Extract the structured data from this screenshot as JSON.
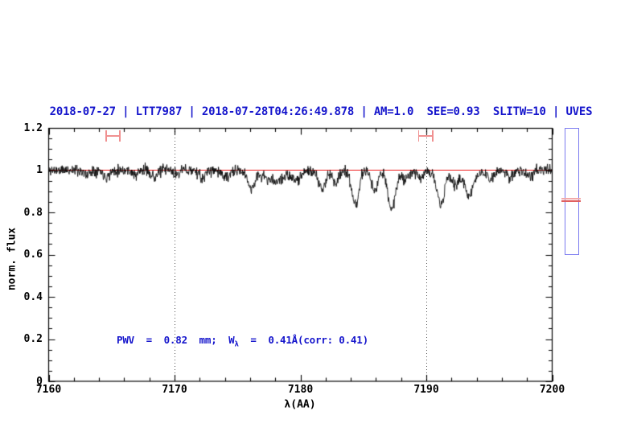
{
  "title": "2018-07-27 | LTT7987 | 2018-07-28T04:26:49.878 | AM=1.0  SEE=0.93  SLITW=10 | UVES",
  "annotation": {
    "prefix": "PWV  =  0.82  mm;  W",
    "sub": "λ",
    "suffix": "  =  0.41Å(corr: 0.41)"
  },
  "colors": {
    "title_blue": "#1515cc",
    "annotation_blue": "#1515cc",
    "trace_black": "#0a0a0a",
    "continuum_red": "#ee2222",
    "marker_salmon": "#f09090",
    "side_box_border": "#7b7bf0",
    "side_line_pink": "#f2aaaa",
    "side_line_red": "#e06060",
    "guide_gray": "#555555",
    "frame_black": "#000000"
  },
  "chart_data": {
    "type": "line",
    "title": "2018-07-27 | LTT7987 | 2018-07-28T04:26:49.878 | AM=1.0  SEE=0.93  SLITW=10 | UVES",
    "xlabel": "λ(AA)",
    "ylabel": "norm. flux",
    "xlim": [
      7160,
      7200
    ],
    "ylim": [
      0,
      1.2
    ],
    "x_major_ticks": [
      7160,
      7170,
      7180,
      7190,
      7200
    ],
    "x_tick_labels": [
      "7160",
      "7170",
      "7180",
      "7190",
      "7200"
    ],
    "x_minor_step": 2,
    "y_major_ticks": [
      0,
      0.2,
      0.4,
      0.6,
      0.8,
      1,
      1.2
    ],
    "y_tick_labels": [
      "0",
      "0.2",
      "0.4",
      "0.6",
      "0.8",
      "1",
      "1.2"
    ],
    "y_minor_step": 0.05,
    "grid": false,
    "continuum_level": 1.0,
    "dotted_guides_x": [
      7170,
      7190
    ],
    "band_markers": [
      {
        "x_center": 7165.1,
        "x_halfwidth": 0.6,
        "y_center": 1.162,
        "cap_halfheight": 0.025
      },
      {
        "x_center": 7189.95,
        "x_halfwidth": 0.62,
        "y_center": 1.162,
        "cap_halfheight": 0.025
      }
    ],
    "absorption_lines_format": [
      "center_AA",
      "depth",
      "sigma_AA"
    ],
    "absorption_lines": [
      [
        7163.0,
        0.025,
        0.2
      ],
      [
        7164.6,
        0.03,
        0.25
      ],
      [
        7166.9,
        0.025,
        0.2
      ],
      [
        7168.4,
        0.035,
        0.22
      ],
      [
        7170.1,
        0.02,
        0.2
      ],
      [
        7172.2,
        0.04,
        0.25
      ],
      [
        7174.1,
        0.035,
        0.3
      ],
      [
        7176.1,
        0.075,
        0.28
      ],
      [
        7177.9,
        0.04,
        0.7
      ],
      [
        7179.6,
        0.04,
        0.3
      ],
      [
        7181.7,
        0.085,
        0.3
      ],
      [
        7182.8,
        0.055,
        0.25
      ],
      [
        7184.35,
        0.17,
        0.28
      ],
      [
        7185.9,
        0.1,
        0.25
      ],
      [
        7187.25,
        0.185,
        0.3
      ],
      [
        7188.3,
        0.045,
        0.2
      ],
      [
        7189.5,
        0.03,
        0.2
      ],
      [
        7191.15,
        0.155,
        0.3
      ],
      [
        7192.3,
        0.06,
        0.25
      ],
      [
        7193.4,
        0.115,
        0.33
      ],
      [
        7195.1,
        0.04,
        0.3
      ],
      [
        7196.6,
        0.03,
        0.25
      ],
      [
        7198.2,
        0.035,
        0.25
      ],
      [
        7178.0,
        0.012,
        2.0
      ],
      [
        7192.0,
        0.01,
        2.5
      ]
    ],
    "noise_sigma": 0.0135,
    "n_points": 1300,
    "seed": 11,
    "side_panel": {
      "flux_top": 1.2,
      "flux_bottom": 0.596,
      "line_fluxes": [
        0.87,
        0.859
      ]
    }
  }
}
